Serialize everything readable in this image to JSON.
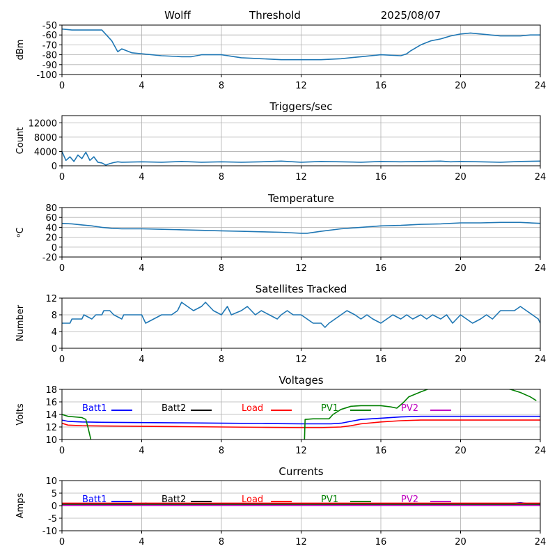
{
  "header": {
    "station": "Wolff",
    "label": "Threshold",
    "date": "2025/08/07"
  },
  "chart_data": [
    {
      "type": "line",
      "title": "",
      "ylabel": "dBm",
      "xlim": [
        0,
        24
      ],
      "ylim": [
        -100,
        -50
      ],
      "xticks": [
        0,
        4,
        8,
        12,
        16,
        20,
        24
      ],
      "yticks": [
        -100,
        -90,
        -80,
        -70,
        -60,
        -50
      ],
      "grid": true,
      "series": [
        {
          "color": "#1f77b4",
          "x": [
            0,
            0.5,
            1,
            1.5,
            2,
            2.5,
            2.8,
            3,
            3.5,
            4,
            5,
            6,
            6.5,
            7,
            8,
            9,
            10,
            11,
            12,
            13,
            14,
            15,
            16,
            17,
            17.3,
            17.5,
            18,
            18.5,
            19,
            19.5,
            20,
            20.5,
            21,
            21.5,
            22,
            22.5,
            23,
            23.5,
            24
          ],
          "y": [
            -54,
            -55,
            -55,
            -55,
            -55,
            -66,
            -77,
            -74,
            -78,
            -79,
            -81,
            -82,
            -82,
            -80,
            -80,
            -83,
            -84,
            -85,
            -85,
            -85,
            -84,
            -82,
            -80,
            -81,
            -79,
            -76,
            -70,
            -66,
            -64,
            -61,
            -59,
            -58,
            -59,
            -60,
            -61,
            -61,
            -61,
            -60,
            -60
          ]
        }
      ]
    },
    {
      "type": "line",
      "title": "Triggers/sec",
      "ylabel": "Count",
      "xlim": [
        0,
        24
      ],
      "ylim": [
        0,
        14000
      ],
      "xticks": [
        0,
        4,
        8,
        12,
        16,
        20,
        24
      ],
      "yticks": [
        0,
        4000,
        8000,
        12000
      ],
      "grid": true,
      "series": [
        {
          "color": "#1f77b4",
          "x": [
            0,
            0.2,
            0.4,
            0.6,
            0.8,
            1,
            1.2,
            1.4,
            1.6,
            1.8,
            2,
            2.2,
            2.4,
            2.6,
            2.8,
            3,
            4,
            5,
            6,
            7,
            8,
            9,
            10,
            11,
            12,
            13,
            14,
            15,
            16,
            17,
            18,
            19,
            19.5,
            20,
            21,
            22,
            23,
            24
          ],
          "y": [
            4000,
            1500,
            2500,
            1200,
            3000,
            2000,
            3800,
            1500,
            2500,
            1000,
            800,
            200,
            600,
            900,
            1100,
            1000,
            1100,
            1000,
            1200,
            1000,
            1100,
            1000,
            1100,
            1300,
            1000,
            1200,
            1100,
            1000,
            1200,
            1100,
            1200,
            1300,
            1100,
            1200,
            1100,
            1000,
            1200,
            1300
          ]
        }
      ]
    },
    {
      "type": "line",
      "title": "Temperature",
      "ylabel": "ᵒC",
      "xlim": [
        0,
        24
      ],
      "ylim": [
        -20,
        80
      ],
      "xticks": [
        0,
        4,
        8,
        12,
        16,
        20,
        24
      ],
      "yticks": [
        -20,
        0,
        20,
        40,
        60,
        80
      ],
      "grid": true,
      "series": [
        {
          "color": "#1f77b4",
          "x": [
            0,
            0.5,
            1,
            1.5,
            2,
            2.5,
            3,
            4,
            5,
            6,
            7,
            8,
            9,
            10,
            11,
            12,
            12.3,
            13,
            14,
            15,
            16,
            17,
            18,
            19,
            20,
            21,
            22,
            23,
            24
          ],
          "y": [
            48,
            47,
            45,
            43,
            40,
            38,
            37,
            37,
            36,
            35,
            34,
            33,
            32,
            31,
            30,
            28,
            28,
            32,
            37,
            40,
            43,
            44,
            46,
            47,
            49,
            49,
            50,
            50,
            48
          ]
        }
      ]
    },
    {
      "type": "line",
      "title": "Satellites Tracked",
      "ylabel": "Number",
      "xlim": [
        0,
        24
      ],
      "ylim": [
        0,
        12
      ],
      "xticks": [
        0,
        4,
        8,
        12,
        16,
        20,
        24
      ],
      "yticks": [
        0,
        4,
        8,
        12
      ],
      "grid": true,
      "series": [
        {
          "color": "#1f77b4",
          "x": [
            0,
            0.4,
            0.5,
            1,
            1.1,
            1.5,
            1.7,
            2,
            2.1,
            2.4,
            2.6,
            3,
            3.1,
            4,
            4.2,
            4.6,
            5,
            5.5,
            5.8,
            6,
            6.3,
            6.6,
            7,
            7.2,
            7.6,
            8,
            8.3,
            8.5,
            9,
            9.3,
            9.7,
            10,
            10.4,
            10.8,
            11,
            11.3,
            11.6,
            12,
            12.3,
            12.6,
            13,
            13.2,
            13.4,
            13.7,
            14,
            14.3,
            14.7,
            15,
            15.3,
            15.6,
            16,
            16.3,
            16.6,
            17,
            17.3,
            17.6,
            18,
            18.3,
            18.6,
            19,
            19.3,
            19.6,
            20,
            20.3,
            20.6,
            21,
            21.3,
            21.6,
            22,
            22.3,
            22.7,
            23,
            23.3,
            23.6,
            23.9,
            24
          ],
          "y": [
            6,
            6,
            7,
            7,
            8,
            7,
            8,
            8,
            9,
            9,
            8,
            7,
            8,
            8,
            6,
            7,
            8,
            8,
            9,
            11,
            10,
            9,
            10,
            11,
            9,
            8,
            10,
            8,
            9,
            10,
            8,
            9,
            8,
            7,
            8,
            9,
            8,
            8,
            7,
            6,
            6,
            5,
            6,
            7,
            8,
            9,
            8,
            7,
            8,
            7,
            6,
            7,
            8,
            7,
            8,
            7,
            8,
            7,
            8,
            7,
            8,
            6,
            8,
            7,
            6,
            7,
            8,
            7,
            9,
            9,
            9,
            10,
            9,
            8,
            7,
            6
          ]
        }
      ]
    },
    {
      "type": "line",
      "title": "Voltages",
      "ylabel": "Volts",
      "xlim": [
        0,
        24
      ],
      "ylim": [
        10,
        18
      ],
      "xticks": [
        0,
        4,
        8,
        12,
        16,
        20,
        24
      ],
      "yticks": [
        10,
        12,
        14,
        16,
        18
      ],
      "grid": true,
      "legend": "top, inside, single row",
      "series": [
        {
          "name": "Batt1",
          "color": "#0000ff",
          "x": [
            0,
            0.3,
            1,
            2,
            4,
            6,
            8,
            10,
            12,
            13,
            13.5,
            14,
            14.5,
            15,
            16,
            17,
            18,
            20,
            22,
            24
          ],
          "y": [
            13.1,
            12.9,
            12.8,
            12.75,
            12.7,
            12.65,
            12.6,
            12.55,
            12.5,
            12.5,
            12.5,
            12.6,
            12.9,
            13.2,
            13.4,
            13.6,
            13.7,
            13.7,
            13.7,
            13.7
          ]
        },
        {
          "name": "Batt2",
          "color": "#000000",
          "x": [],
          "y": []
        },
        {
          "name": "Load",
          "color": "#ff0000",
          "x": [
            0,
            0.3,
            1,
            2,
            4,
            6,
            8,
            10,
            12,
            13,
            14,
            14.5,
            15,
            16,
            17,
            18,
            20,
            22,
            24
          ],
          "y": [
            12.6,
            12.3,
            12.2,
            12.15,
            12.1,
            12.05,
            12.0,
            11.95,
            11.9,
            11.9,
            12.0,
            12.2,
            12.5,
            12.8,
            13.0,
            13.1,
            13.1,
            13.1,
            13.1
          ]
        },
        {
          "name": "PV1",
          "color": "#008000",
          "x": [
            0,
            0.3,
            1,
            1.2,
            1.3,
            1.6,
            12.15,
            12.2,
            12.6,
            13,
            13.4,
            13.6,
            14,
            14.5,
            15,
            16,
            16.5,
            16.8,
            17.1,
            17.4,
            18,
            18.5,
            22,
            22.5,
            23,
            23.5,
            23.8
          ],
          "y": [
            14.0,
            13.7,
            13.5,
            13.2,
            12.0,
            8.0,
            8.0,
            13.2,
            13.3,
            13.3,
            13.3,
            14.0,
            14.8,
            15.3,
            15.4,
            15.4,
            15.2,
            15.0,
            15.8,
            16.8,
            17.6,
            18.2,
            18.2,
            18.0,
            17.5,
            16.8,
            16.2
          ]
        },
        {
          "name": "PV2",
          "color": "#bf00bf",
          "x": [],
          "y": []
        }
      ]
    },
    {
      "type": "line",
      "title": "Currents",
      "ylabel": "Amps",
      "xlim": [
        0,
        24
      ],
      "ylim": [
        -10,
        10
      ],
      "xticks": [
        0,
        4,
        8,
        12,
        16,
        20,
        24
      ],
      "yticks": [
        -10,
        -5,
        0,
        5,
        10
      ],
      "grid": true,
      "legend": "top, inside, single row",
      "series": [
        {
          "name": "Batt1",
          "color": "#0000ff",
          "x": [
            0,
            4,
            4.2,
            4.5,
            8,
            12,
            16,
            20,
            22.5,
            23,
            23.5,
            24
          ],
          "y": [
            0.6,
            0.6,
            1.0,
            0.6,
            0.6,
            0.5,
            0.6,
            0.6,
            0.8,
            1.2,
            0.7,
            0.6
          ]
        },
        {
          "name": "Batt2",
          "color": "#000000",
          "x": [
            0,
            24
          ],
          "y": [
            0.5,
            0.5
          ]
        },
        {
          "name": "Load",
          "color": "#ff0000",
          "x": [
            0,
            24
          ],
          "y": [
            1.0,
            1.0
          ]
        },
        {
          "name": "PV1",
          "color": "#008000",
          "x": [
            0,
            24
          ],
          "y": [
            0.3,
            0.3
          ]
        },
        {
          "name": "PV2",
          "color": "#bf00bf",
          "x": [
            0,
            24
          ],
          "y": [
            0.1,
            0.1
          ]
        }
      ]
    }
  ]
}
